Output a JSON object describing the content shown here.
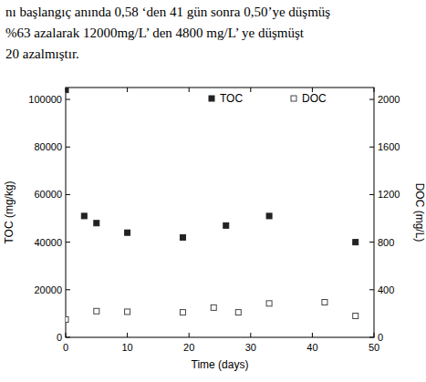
{
  "text": {
    "lines": [
      "nı başlangıç anında 0,58 ‘den 41 gün sonra 0,50’ye düşmüş",
      "%63 azalarak 12000mg/L’ den 4800 mg/L’ ye düşmüşt",
      "20 azalmıştır."
    ]
  },
  "chart_data": {
    "type": "scatter",
    "x_label": "Time (days)",
    "y_label": "TOC (mg/kg)",
    "y2_label": "DOC (mg/L)",
    "xlim": [
      0,
      50
    ],
    "xticks": [
      0,
      10,
      20,
      30,
      40,
      50
    ],
    "ylim": [
      0,
      105000
    ],
    "yticks": [
      0,
      20000,
      40000,
      60000,
      80000,
      100000
    ],
    "y2lim": [
      0,
      2100
    ],
    "y2ticks": [
      0,
      400,
      800,
      1200,
      1600,
      2000
    ],
    "legend": "top",
    "series": [
      {
        "name": "TOC",
        "color": "#222222",
        "marker": "square",
        "x": [
          0,
          3,
          5,
          10,
          19,
          26,
          33,
          47
        ],
        "values": [
          104000,
          51000,
          48000,
          44000,
          42000,
          47000,
          51000,
          40000
        ]
      },
      {
        "name": "DOC",
        "color": "#444444",
        "marker": "open_square",
        "axis": "y2",
        "x": [
          0,
          5,
          10,
          19,
          24,
          28,
          33,
          42,
          47
        ],
        "values": [
          150,
          220,
          215,
          210,
          250,
          210,
          285,
          295,
          180
        ]
      }
    ]
  }
}
